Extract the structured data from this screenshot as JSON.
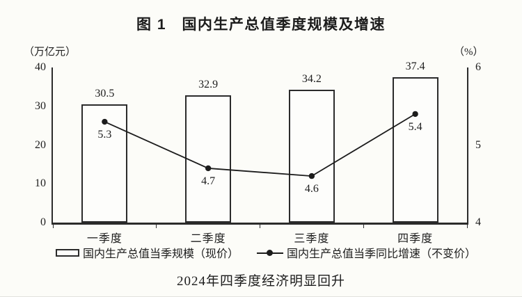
{
  "title": "图 1　国内生产总值季度规模及增速",
  "caption": "2024年四季度经济明显回升",
  "chart_data": {
    "type": "bar+line",
    "title": "图 1　国内生产总值季度规模及增速",
    "categories": [
      "一季度",
      "二季度",
      "三季度",
      "四季度"
    ],
    "series": [
      {
        "name": "国内生产总值当季规模（现价）",
        "type": "bar",
        "axis": "left",
        "values": [
          30.5,
          32.9,
          34.2,
          37.4
        ]
      },
      {
        "name": "国内生产总值当季同比增速（不变价）",
        "type": "line",
        "axis": "right",
        "values": [
          5.3,
          4.7,
          4.6,
          5.4
        ]
      }
    ],
    "left_axis": {
      "label": "（万亿元）",
      "min": 0,
      "max": 40,
      "ticks": [
        0,
        10,
        20,
        30,
        40
      ]
    },
    "right_axis": {
      "label": "（%）",
      "min": 4,
      "max": 6,
      "ticks": [
        4,
        5,
        6
      ]
    },
    "legend_position": "bottom",
    "grid": false,
    "colors": {
      "bar_fill": "#fdfdfb",
      "bar_border": "#2b2b2b",
      "line": "#1c1c1c",
      "background": "#fcfcf8"
    }
  }
}
